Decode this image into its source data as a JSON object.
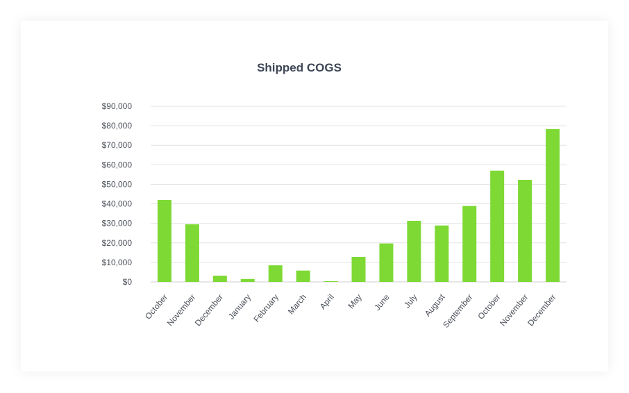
{
  "chart_data": {
    "type": "bar",
    "title": "Shipped COGS",
    "xlabel": "",
    "ylabel": "",
    "categories": [
      "October",
      "November",
      "December",
      "January",
      "February",
      "March",
      "April",
      "May",
      "June",
      "July",
      "August",
      "September",
      "October",
      "November",
      "December"
    ],
    "values": [
      42000,
      29500,
      3200,
      1500,
      8500,
      5800,
      400,
      12800,
      19700,
      31300,
      28900,
      38900,
      57000,
      52300,
      78300
    ],
    "ylim": [
      0,
      90000
    ],
    "yticks": [
      0,
      10000,
      20000,
      30000,
      40000,
      50000,
      60000,
      70000,
      80000,
      90000
    ],
    "ytick_labels": [
      "$0",
      "$10,000",
      "$20,000",
      "$30,000",
      "$40,000",
      "$50,000",
      "$60,000",
      "$70,000",
      "$80,000",
      "$90,000"
    ],
    "bar_color": "#7ed934",
    "grid": true,
    "legend": "none"
  }
}
